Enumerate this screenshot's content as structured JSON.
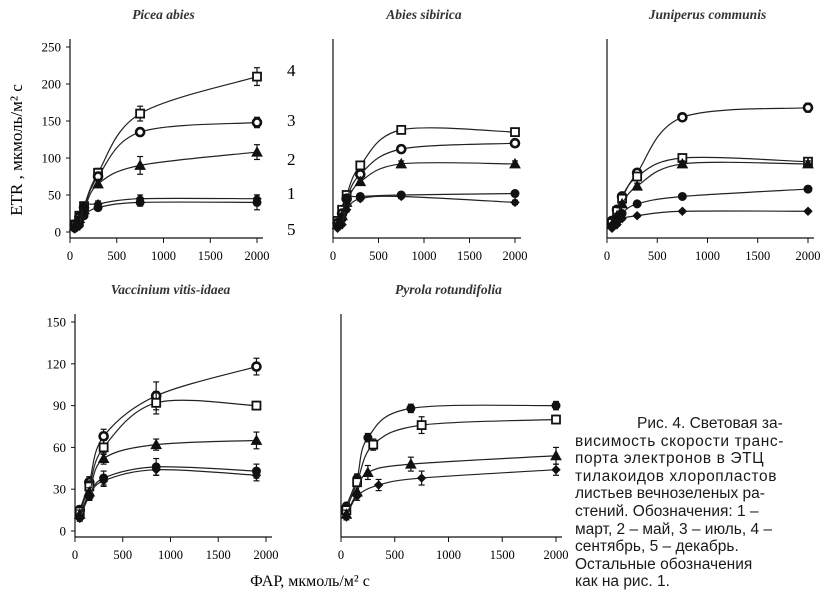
{
  "figure": {
    "y_axis_label": "ETR , мкмоль/м² с",
    "x_axis_label": "ФАР, мкмоль/м² с",
    "series_labels": [
      "4",
      "3",
      "2",
      "1",
      "5"
    ],
    "caption_lines": [
      "Рис. 4. Световая за-",
      "висимость скорости транс-",
      "порта электронов в ЭТЦ",
      "тилакоидов хлоропластов",
      "листьев вечнозеленых ра-",
      "стений. Обозначения: 1 –",
      "март, 2 – май, 3 – июль, 4 –",
      "сентябрь, 5 – декабрь.",
      "Остальные обозначения",
      "как на рис. 1."
    ]
  },
  "chart_data": [
    {
      "type": "line",
      "title": "Picea abies",
      "xlim": [
        0,
        2000
      ],
      "ylim": [
        0,
        250
      ],
      "xticks": [
        "0",
        "500",
        "1000",
        "1500",
        "2000"
      ],
      "yticks": [
        "0",
        "50",
        "100",
        "150",
        "200",
        "250"
      ],
      "grid": false,
      "series": [
        {
          "name": "4",
          "marker": "square",
          "x": [
            50,
            100,
            150,
            300,
            750,
            2000
          ],
          "y": [
            10,
            22,
            35,
            80,
            160,
            210
          ],
          "err": [
            3,
            4,
            5,
            6,
            10,
            12
          ]
        },
        {
          "name": "3",
          "marker": "circle",
          "x": [
            50,
            100,
            150,
            300,
            750,
            2000
          ],
          "y": [
            10,
            20,
            33,
            75,
            135,
            148
          ],
          "err": [
            3,
            3,
            4,
            5,
            5,
            7
          ]
        },
        {
          "name": "2",
          "marker": "triangle",
          "x": [
            50,
            100,
            150,
            300,
            750,
            2000
          ],
          "y": [
            8,
            18,
            30,
            65,
            90,
            108
          ],
          "err": [
            3,
            3,
            4,
            5,
            12,
            10
          ]
        },
        {
          "name": "1",
          "marker": "circle-filled",
          "x": [
            50,
            100,
            150,
            300,
            750,
            2000
          ],
          "y": [
            5,
            10,
            22,
            33,
            40,
            40
          ],
          "err": [
            2,
            3,
            3,
            4,
            5,
            10
          ]
        },
        {
          "name": "5",
          "marker": "diamond",
          "x": [
            50,
            100,
            150,
            300,
            750,
            2000
          ],
          "y": [
            4,
            8,
            35,
            38,
            45,
            45
          ],
          "err": [
            2,
            2,
            4,
            4,
            5,
            5
          ]
        }
      ]
    },
    {
      "type": "line",
      "title": "Abies sibirica",
      "xlim": [
        0,
        2000
      ],
      "ylim": [
        0,
        250
      ],
      "xticks": [
        "0",
        "500",
        "1000",
        "1500",
        "2000"
      ],
      "grid": false,
      "series": [
        {
          "name": "4",
          "marker": "square",
          "x": [
            50,
            100,
            150,
            300,
            750,
            2000
          ],
          "y": [
            15,
            30,
            50,
            90,
            138,
            135
          ],
          "err": [
            3,
            3,
            4,
            5,
            5,
            5
          ]
        },
        {
          "name": "3",
          "marker": "circle",
          "x": [
            50,
            100,
            150,
            300,
            750,
            2000
          ],
          "y": [
            12,
            25,
            45,
            78,
            112,
            120
          ],
          "err": [
            3,
            3,
            4,
            4,
            5,
            5
          ]
        },
        {
          "name": "2",
          "marker": "triangle",
          "x": [
            50,
            100,
            150,
            300,
            750,
            2000
          ],
          "y": [
            10,
            22,
            40,
            68,
            92,
            92
          ],
          "err": [
            2,
            3,
            3,
            4,
            4,
            4
          ]
        },
        {
          "name": "1",
          "marker": "circle-filled",
          "x": [
            50,
            100,
            150,
            300,
            750,
            2000
          ],
          "y": [
            8,
            18,
            45,
            48,
            50,
            52
          ],
          "err": [
            2,
            3,
            3,
            3,
            4,
            4
          ]
        },
        {
          "name": "5",
          "marker": "diamond",
          "x": [
            50,
            100,
            150,
            300,
            750,
            2000
          ],
          "y": [
            5,
            10,
            30,
            45,
            48,
            40
          ],
          "err": [
            2,
            2,
            3,
            3,
            3,
            3
          ]
        }
      ]
    },
    {
      "type": "line",
      "title": "Juniperus communis",
      "xlim": [
        0,
        2000
      ],
      "ylim": [
        0,
        250
      ],
      "xticks": [
        "0",
        "500",
        "1000",
        "1500",
        "2000"
      ],
      "grid": false,
      "series": [
        {
          "name": "4",
          "marker": "circle",
          "x": [
            50,
            100,
            150,
            300,
            750,
            2000
          ],
          "y": [
            15,
            30,
            48,
            80,
            155,
            168
          ],
          "err": [
            3,
            3,
            4,
            5,
            5,
            6
          ]
        },
        {
          "name": "3",
          "marker": "square",
          "x": [
            50,
            100,
            150,
            300,
            750,
            2000
          ],
          "y": [
            12,
            28,
            45,
            75,
            100,
            95
          ],
          "err": [
            3,
            3,
            3,
            4,
            5,
            5
          ]
        },
        {
          "name": "2",
          "marker": "triangle",
          "x": [
            50,
            100,
            150,
            300,
            750,
            2000
          ],
          "y": [
            10,
            22,
            38,
            62,
            92,
            92
          ],
          "err": [
            2,
            3,
            3,
            4,
            4,
            4
          ]
        },
        {
          "name": "1",
          "marker": "circle-filled",
          "x": [
            50,
            100,
            150,
            300,
            750,
            2000
          ],
          "y": [
            8,
            15,
            25,
            38,
            48,
            58
          ],
          "err": [
            2,
            2,
            3,
            3,
            3,
            4
          ]
        },
        {
          "name": "5",
          "marker": "diamond",
          "x": [
            50,
            100,
            150,
            300,
            750,
            2000
          ],
          "y": [
            5,
            10,
            18,
            22,
            28,
            28
          ],
          "err": [
            2,
            2,
            2,
            2,
            2,
            2
          ]
        }
      ]
    },
    {
      "type": "line",
      "title": "Vaccinium vitis-idaea",
      "xlim": [
        0,
        2000
      ],
      "ylim": [
        0,
        150
      ],
      "xticks": [
        "0",
        "500",
        "1000",
        "1500",
        "2000"
      ],
      "yticks": [
        "0",
        "30",
        "60",
        "90",
        "120",
        "150"
      ],
      "grid": false,
      "series": [
        {
          "name": "4",
          "marker": "circle",
          "x": [
            50,
            150,
            300,
            850,
            1900
          ],
          "y": [
            15,
            35,
            68,
            97,
            118
          ],
          "err": [
            3,
            4,
            5,
            10,
            6
          ]
        },
        {
          "name": "3",
          "marker": "square",
          "x": [
            50,
            150,
            300,
            850,
            1900
          ],
          "y": [
            14,
            32,
            60,
            92,
            90
          ],
          "err": [
            3,
            4,
            5,
            8,
            3
          ]
        },
        {
          "name": "2",
          "marker": "triangle",
          "x": [
            50,
            150,
            300,
            850,
            1900
          ],
          "y": [
            12,
            28,
            52,
            62,
            65
          ],
          "err": [
            3,
            3,
            4,
            4,
            6
          ]
        },
        {
          "name": "1",
          "marker": "circle-filled",
          "x": [
            50,
            150,
            300,
            850,
            1900
          ],
          "y": [
            10,
            25,
            38,
            46,
            43
          ],
          "err": [
            2,
            3,
            5,
            6,
            5
          ]
        },
        {
          "name": "5",
          "marker": "diamond",
          "x": [
            50,
            150,
            300,
            850,
            1900
          ],
          "y": [
            9,
            25,
            36,
            44,
            40
          ],
          "err": [
            2,
            3,
            4,
            4,
            4
          ]
        }
      ]
    },
    {
      "type": "line",
      "title": "Pyrola rotundifolia",
      "xlim": [
        0,
        2000
      ],
      "ylim": [
        0,
        150
      ],
      "xticks": [
        "0",
        "500",
        "1000",
        "1500",
        "2000"
      ],
      "grid": false,
      "series": [
        {
          "name": "4",
          "marker": "circle-filled",
          "x": [
            50,
            150,
            250,
            650,
            2000
          ],
          "y": [
            18,
            38,
            67,
            88,
            90
          ],
          "err": [
            2,
            3,
            3,
            3,
            3
          ]
        },
        {
          "name": "3",
          "marker": "square",
          "x": [
            50,
            150,
            300,
            750,
            2000
          ],
          "y": [
            15,
            35,
            62,
            76,
            80
          ],
          "err": [
            3,
            3,
            4,
            6,
            3
          ]
        },
        {
          "name": "2",
          "marker": "triangle",
          "x": [
            50,
            150,
            250,
            650,
            2000
          ],
          "y": [
            12,
            28,
            42,
            48,
            54
          ],
          "err": [
            3,
            4,
            5,
            5,
            6
          ]
        },
        {
          "name": "1",
          "marker": "diamond",
          "x": [
            50,
            150,
            350,
            750,
            2000
          ],
          "y": [
            10,
            25,
            33,
            38,
            44
          ],
          "err": [
            2,
            3,
            4,
            5,
            4
          ]
        }
      ]
    }
  ]
}
